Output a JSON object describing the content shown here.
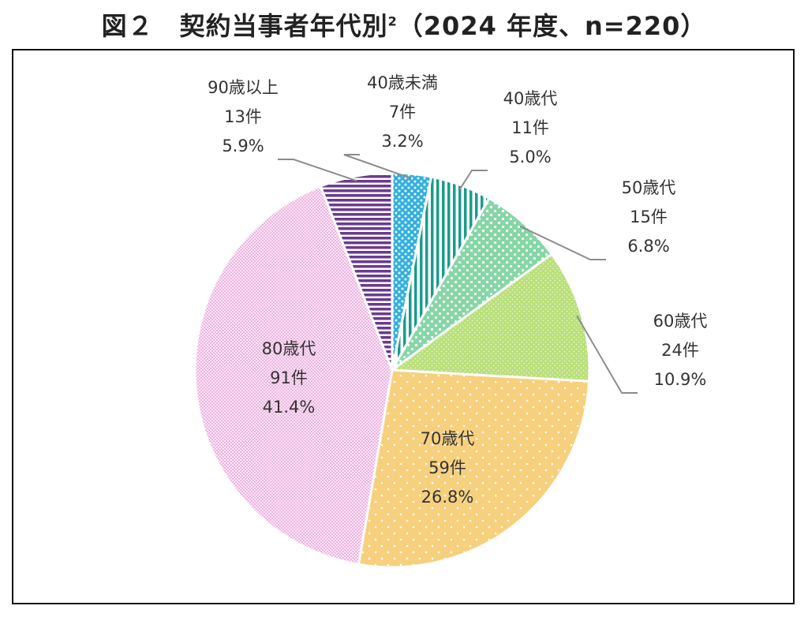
{
  "figure": {
    "number": "図２",
    "title": "契約当事者年代別",
    "footnote": "2",
    "subtitle": "（2024 年度、n=220）"
  },
  "chart_data": {
    "type": "pie",
    "title": "契約当事者年代別",
    "total_label": "n=220",
    "slices": [
      {
        "name": "40歳未満",
        "count_label": "7件",
        "percent_label": "3.2%",
        "value": 7,
        "percent": 3.2,
        "color": "#2eb0e0",
        "pattern": "dots-dense"
      },
      {
        "name": "40歳代",
        "count_label": "11件",
        "percent_label": "5.0%",
        "value": 11,
        "percent": 5.0,
        "color": "#1b9b8c",
        "pattern": "vertical-lines"
      },
      {
        "name": "50歳代",
        "count_label": "15件",
        "percent_label": "6.8%",
        "value": 15,
        "percent": 6.8,
        "color": "#86d6a6",
        "pattern": "dots-medium"
      },
      {
        "name": "60歳代",
        "count_label": "24件",
        "percent_label": "10.9%",
        "value": 24,
        "percent": 10.9,
        "color": "#b9df7a",
        "pattern": "fine-dots"
      },
      {
        "name": "70歳代",
        "count_label": "59件",
        "percent_label": "26.8%",
        "value": 59,
        "percent": 26.8,
        "color": "#f7d07e",
        "pattern": "sparse-dots"
      },
      {
        "name": "80歳代",
        "count_label": "91件",
        "percent_label": "41.4%",
        "value": 91,
        "percent": 41.4,
        "color": "#f5c8ec",
        "pattern": "checker"
      },
      {
        "name": "90歳以上",
        "count_label": "13件",
        "percent_label": "5.9%",
        "value": 13,
        "percent": 5.9,
        "color": "#6a3a8f",
        "pattern": "horizontal-lines"
      }
    ]
  }
}
